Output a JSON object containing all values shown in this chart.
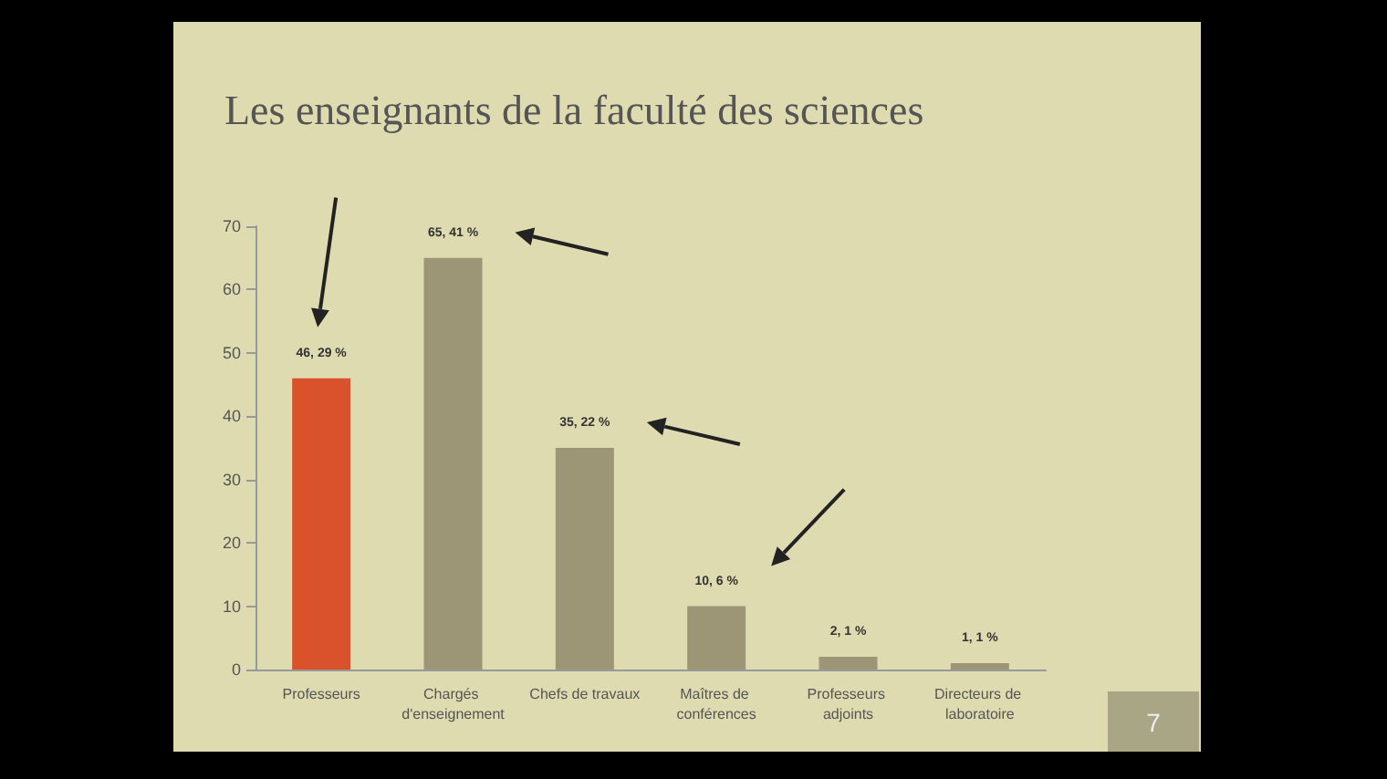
{
  "chart_data": {
    "type": "bar",
    "title": "Les enseignants de la faculté des sciences",
    "categories": [
      "Professeurs",
      "Chargés d'enseignement",
      "Chefs de travaux",
      "Maîtres de conférences",
      "Professeurs adjoints",
      "Directeurs de laboratoire"
    ],
    "values": [
      46,
      65,
      35,
      10,
      2,
      1
    ],
    "colors": [
      "#d9522c",
      "#9c9677",
      "#9c9677",
      "#9c9677",
      "#9c9677",
      "#9c9677"
    ],
    "value_labels": [
      "46, 29 %",
      "65, 41 %",
      "35, 22 %",
      "10, 6 %",
      "2, 1 %",
      "1, 1 %"
    ],
    "ylim": [
      0,
      70
    ],
    "yticks": [
      0,
      10,
      20,
      30,
      40,
      50,
      60,
      70
    ],
    "grid": false,
    "annotations": [
      "7"
    ]
  }
}
